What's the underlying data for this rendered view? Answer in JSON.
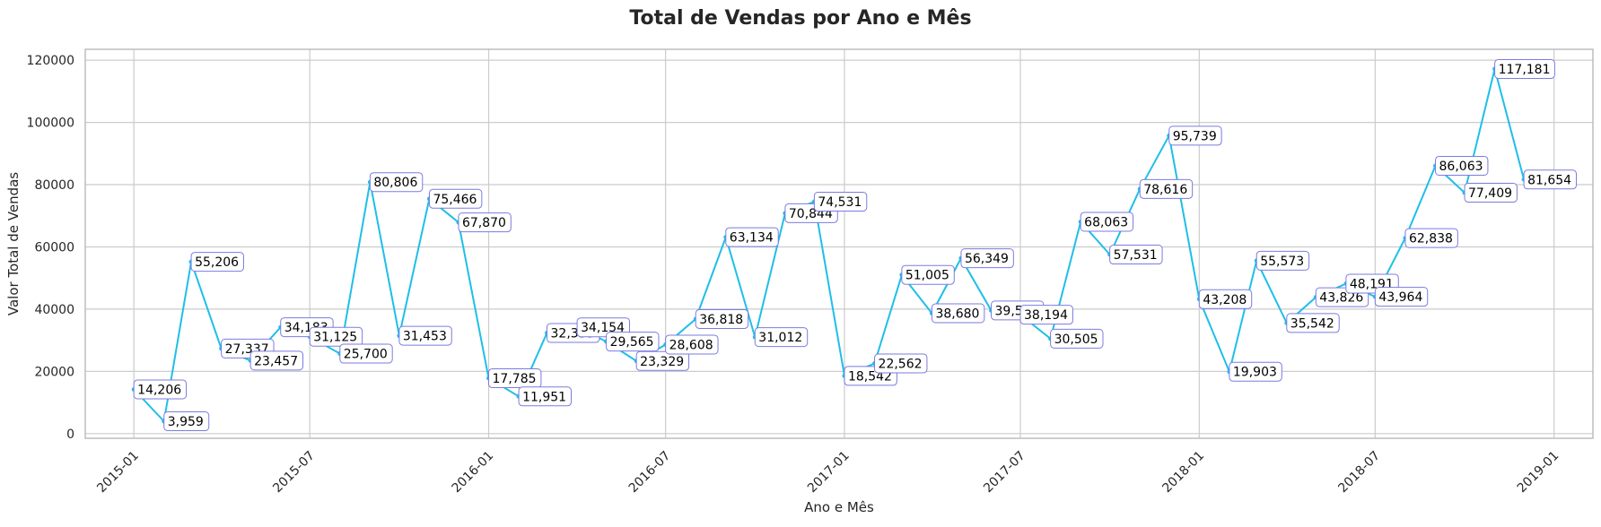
{
  "chart_data": {
    "type": "line",
    "title": "Total de Vendas por Ano e Mês",
    "xlabel": "Ano e Mês",
    "ylabel": "Valor Total de Vendas",
    "ylim": [
      -1500,
      123500
    ],
    "xlim": [
      "2014-11-12",
      "2019-02-10"
    ],
    "y_ticks": [
      0,
      20000,
      40000,
      60000,
      80000,
      100000,
      120000
    ],
    "y_tick_labels": [
      "0",
      "20000",
      "40000",
      "60000",
      "80000",
      "100000",
      "120000"
    ],
    "x_ticks": [
      "2015-01",
      "2015-07",
      "2016-01",
      "2016-07",
      "2017-01",
      "2017-07",
      "2018-01",
      "2018-07",
      "2019-01"
    ],
    "x_tick_labels": [
      "2015-01",
      "2015-07",
      "2016-01",
      "2016-07",
      "2017-01",
      "2017-07",
      "2018-01",
      "2018-07",
      "2019-01"
    ],
    "grid": true,
    "line_color": "#1ebfe8",
    "label_border_color": "#7b7be0",
    "series": [
      {
        "x": [
          "2015-01",
          "2015-02",
          "2015-03",
          "2015-04",
          "2015-05",
          "2015-06",
          "2015-07",
          "2015-08",
          "2015-09",
          "2015-10",
          "2015-11",
          "2015-12",
          "2016-01",
          "2016-02",
          "2016-03",
          "2016-04",
          "2016-05",
          "2016-06",
          "2016-07",
          "2016-08",
          "2016-09",
          "2016-10",
          "2016-11",
          "2016-12",
          "2017-01",
          "2017-02",
          "2017-03",
          "2017-04",
          "2017-05",
          "2017-06",
          "2017-07",
          "2017-08",
          "2017-09",
          "2017-10",
          "2017-11",
          "2017-12",
          "2018-01",
          "2018-02",
          "2018-03",
          "2018-04",
          "2018-05",
          "2018-06",
          "2018-07",
          "2018-08",
          "2018-09",
          "2018-10",
          "2018-11",
          "2018-12"
        ],
        "values": [
          14206,
          3959,
          55206,
          27337,
          23457,
          34183,
          31125,
          25700,
          80806,
          31453,
          75466,
          67870,
          17785,
          11951,
          32335,
          34154,
          29565,
          23329,
          28608,
          36818,
          63134,
          31012,
          70844,
          74531,
          18542,
          22562,
          51005,
          38680,
          56349,
          39575,
          38194,
          30505,
          68063,
          57531,
          78616,
          95739,
          43208,
          19903,
          55573,
          35542,
          43826,
          48191,
          43964,
          62838,
          86063,
          77409,
          117181,
          81654
        ],
        "labels": [
          "14,206",
          "3,959",
          "55,206",
          "27,337",
          "23,457",
          "34,183",
          "31,125",
          "25,700",
          "80,806",
          "31,453",
          "75,466",
          "67,870",
          "17,785",
          "11,951",
          "32,335",
          "34,154",
          "29,565",
          "23,329",
          "28,608",
          "36,818",
          "63,134",
          "31,012",
          "70,844",
          "74,531",
          "18,542",
          "22,562",
          "51,005",
          "38,680",
          "56,349",
          "39,575",
          "38,194",
          "30,505",
          "68,063",
          "57,531",
          "78,616",
          "95,739",
          "43,208",
          "19,903",
          "55,573",
          "35,542",
          "43,826",
          "48,191",
          "43,964",
          "62,838",
          "86,063",
          "77,409",
          "117,181",
          "81,654"
        ]
      }
    ]
  }
}
